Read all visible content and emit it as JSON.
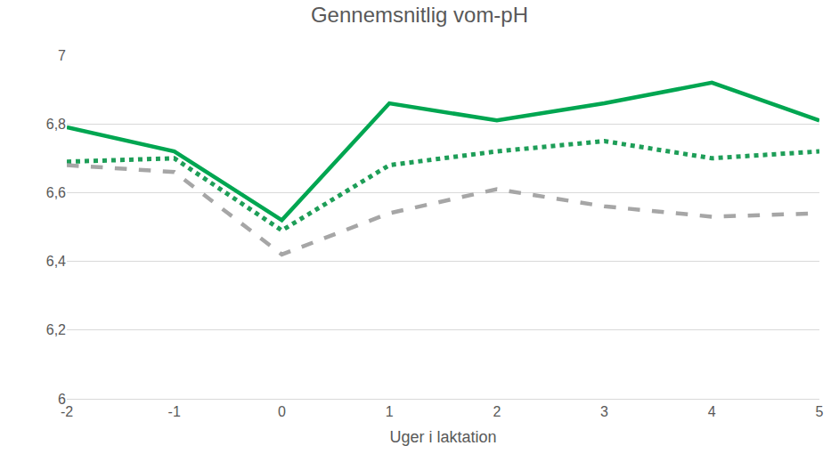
{
  "chart_data": {
    "type": "line",
    "title": "Gennemsnitlig vom-pH",
    "x_label": "Uger i laktation",
    "categories": [
      "-2",
      "-1",
      "0",
      "1",
      "2",
      "3",
      "4",
      "5"
    ],
    "series": [
      {
        "color": "#00a651",
        "line_style": "solid",
        "values": [
          6.79,
          6.72,
          6.52,
          6.86,
          6.81,
          6.86,
          6.92,
          6.81
        ]
      },
      {
        "color": "#1e9e58",
        "line_style": "dot",
        "values": [
          6.69,
          6.7,
          6.49,
          6.68,
          6.72,
          6.75,
          6.7,
          6.72
        ]
      },
      {
        "color": "#a6a6a6",
        "line_style": "dash",
        "values": [
          6.68,
          6.66,
          6.42,
          6.54,
          6.61,
          6.56,
          6.53,
          6.54
        ]
      }
    ],
    "ylim": [
      6,
      7
    ],
    "yticks": [
      6,
      {
        "value": 6.2,
        "label": "6,2"
      },
      {
        "value": 6.4,
        "label": "6,4"
      },
      {
        "value": 6.6,
        "label": "6,6"
      },
      {
        "value": 6.8,
        "label": "6,8"
      },
      7
    ],
    "grid": true
  }
}
